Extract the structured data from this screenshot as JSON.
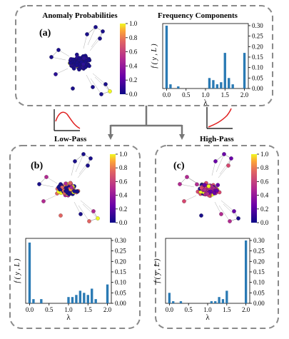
{
  "panels": {
    "top": {
      "label": "(a)",
      "graph_title": "Anomaly Probabilities",
      "chart_title": "Frequency Components"
    },
    "left": {
      "label": "(b)"
    },
    "right": {
      "label": "(c)"
    }
  },
  "filters": {
    "low": "Low-Pass",
    "high": "High-Pass"
  },
  "colorbar_ticks": [
    "1.0",
    "0.8",
    "0.6",
    "0.4",
    "0.2",
    "0.0"
  ],
  "colors": {
    "bar": "#2a7ab4",
    "frame": "#8a8a8a",
    "arrow": "#777777",
    "filter_curve": "#e02020"
  },
  "chart_data": [
    {
      "type": "bar",
      "name": "a",
      "x": [
        0.0,
        0.1,
        0.3,
        1.1,
        1.2,
        1.3,
        1.4,
        1.5,
        1.6,
        1.7,
        2.0
      ],
      "values": [
        0.3,
        0.02,
        0.01,
        0.05,
        0.04,
        0.02,
        0.03,
        0.17,
        0.05,
        0.02,
        0.17
      ],
      "xticks": [
        "0.0",
        "0.5",
        "1.0",
        "1.5",
        "2.0"
      ],
      "yticks": [
        "0.00",
        "0.05",
        "0.10",
        "0.15",
        "0.20",
        "0.25",
        "0.30"
      ],
      "xlabel": "λ",
      "ylabel": "f ( y , L )",
      "xlim": [
        -0.1,
        2.1
      ],
      "ylim": [
        0,
        0.31
      ]
    },
    {
      "type": "bar",
      "name": "b",
      "x": [
        0.0,
        0.1,
        0.3,
        1.0,
        1.1,
        1.2,
        1.3,
        1.4,
        1.5,
        1.6,
        1.7,
        2.0
      ],
      "values": [
        0.29,
        0.02,
        0.02,
        0.03,
        0.03,
        0.04,
        0.06,
        0.05,
        0.04,
        0.07,
        0.02,
        0.09
      ],
      "xticks": [
        "0.0",
        "0.5",
        "1.0",
        "1.5",
        "2.0"
      ],
      "yticks": [
        "0.00",
        "0.05",
        "0.10",
        "0.15",
        "0.20",
        "0.25",
        "0.30"
      ],
      "xlabel": "λ",
      "ylabel": "f ( y , L )",
      "xlim": [
        -0.1,
        2.1
      ],
      "ylim": [
        0,
        0.31
      ]
    },
    {
      "type": "bar",
      "name": "c",
      "x": [
        0.0,
        0.1,
        0.3,
        1.1,
        1.2,
        1.3,
        1.4,
        1.5,
        2.0
      ],
      "values": [
        0.05,
        0.01,
        0.01,
        0.01,
        0.01,
        0.03,
        0.02,
        0.06,
        0.3
      ],
      "xticks": [
        "0.0",
        "0.5",
        "1.0",
        "1.5",
        "2.0"
      ],
      "yticks": [
        "0.00",
        "0.05",
        "0.10",
        "0.15",
        "0.20",
        "0.25",
        "0.30"
      ],
      "xlabel": "λ",
      "ylabel": "f ( y , L )",
      "xlim": [
        -0.1,
        2.1
      ],
      "ylim": [
        0,
        0.31
      ]
    }
  ]
}
